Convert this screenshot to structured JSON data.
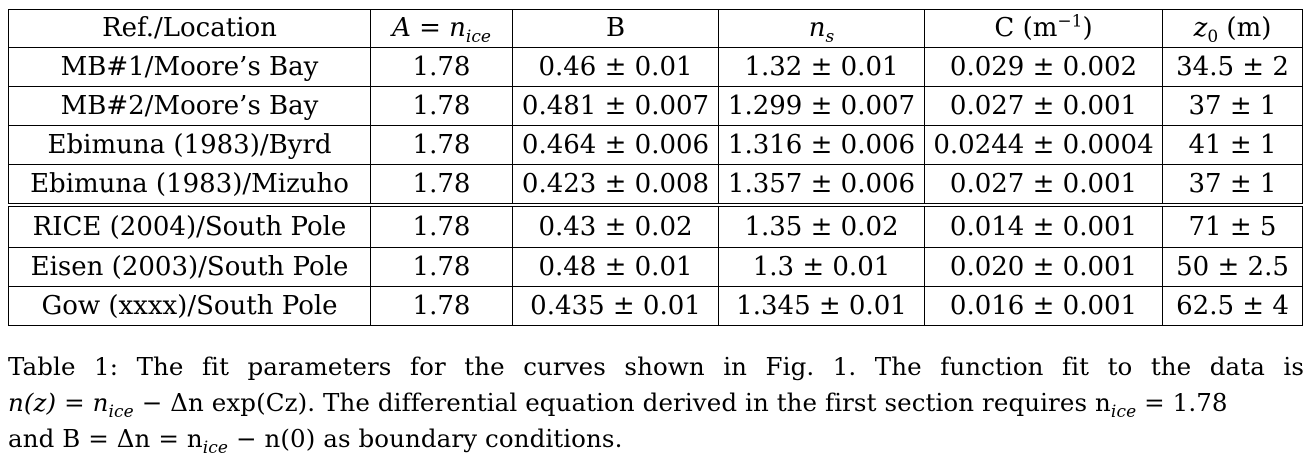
{
  "table": {
    "headers": [
      "Ref./Location",
      "A = n",
      "ice",
      "B",
      "n",
      "s",
      "C (m",
      "−1",
      ")",
      "z",
      "0",
      " (m)"
    ],
    "header_cells": {
      "ref_location": "Ref./Location",
      "a_prefix": "A = n",
      "a_sub": "ice",
      "b": "B",
      "ns_main": "n",
      "ns_sub": "s",
      "c_prefix": "C (m",
      "c_sup": "−1",
      "c_suffix": ")",
      "z0_main": "z",
      "z0_sub": "0",
      "z0_suffix": " (m)"
    },
    "group1": [
      {
        "ref": "MB#1/Moore’s Bay",
        "a": "1.78",
        "b": "0.46 ± 0.01",
        "ns": "1.32 ± 0.01",
        "c": "0.029 ± 0.002",
        "z0": "34.5 ± 2"
      },
      {
        "ref": "MB#2/Moore’s Bay",
        "a": "1.78",
        "b": "0.481 ± 0.007",
        "ns": "1.299 ± 0.007",
        "c": "0.027 ± 0.001",
        "z0": "37 ± 1"
      },
      {
        "ref": "Ebimuna (1983)/Byrd",
        "a": "1.78",
        "b": "0.464 ± 0.006",
        "ns": "1.316 ± 0.006",
        "c": "0.0244 ± 0.0004",
        "z0": "41 ± 1"
      },
      {
        "ref": "Ebimuna (1983)/Mizuho",
        "a": "1.78",
        "b": "0.423 ± 0.008",
        "ns": "1.357 ± 0.006",
        "c": "0.027 ± 0.001",
        "z0": "37 ± 1"
      }
    ],
    "group2": [
      {
        "ref": "RICE (2004)/South Pole",
        "a": "1.78",
        "b": "0.43 ± 0.02",
        "ns": "1.35 ± 0.02",
        "c": "0.014 ± 0.001",
        "z0": "71 ± 5"
      },
      {
        "ref": "Eisen (2003)/South Pole",
        "a": "1.78",
        "b": "0.48 ± 0.01",
        "ns": "1.3 ± 0.01",
        "c": "0.020 ± 0.001",
        "z0": "50 ± 2.5"
      },
      {
        "ref": "Gow (xxxx)/South Pole",
        "a": "1.78",
        "b": "0.435 ± 0.01",
        "ns": "1.345 ± 0.01",
        "c": "0.016 ± 0.001",
        "z0": "62.5 ± 4"
      }
    ]
  },
  "caption": {
    "l1_a": "Table 1:  The fit parameters for the curves shown in Fig.  1.  The function fit to the data is",
    "l2_a": "n(z) = n",
    "l2_sub1": "ice",
    "l2_b": " − Δn exp(Cz). The differential equation derived in the first section requires n",
    "l2_sub2": "ice",
    "l2_c": " = 1.78",
    "l3_a": "and B = Δn = n",
    "l3_sub": "ice",
    "l3_b": " − n(0) as boundary conditions."
  }
}
